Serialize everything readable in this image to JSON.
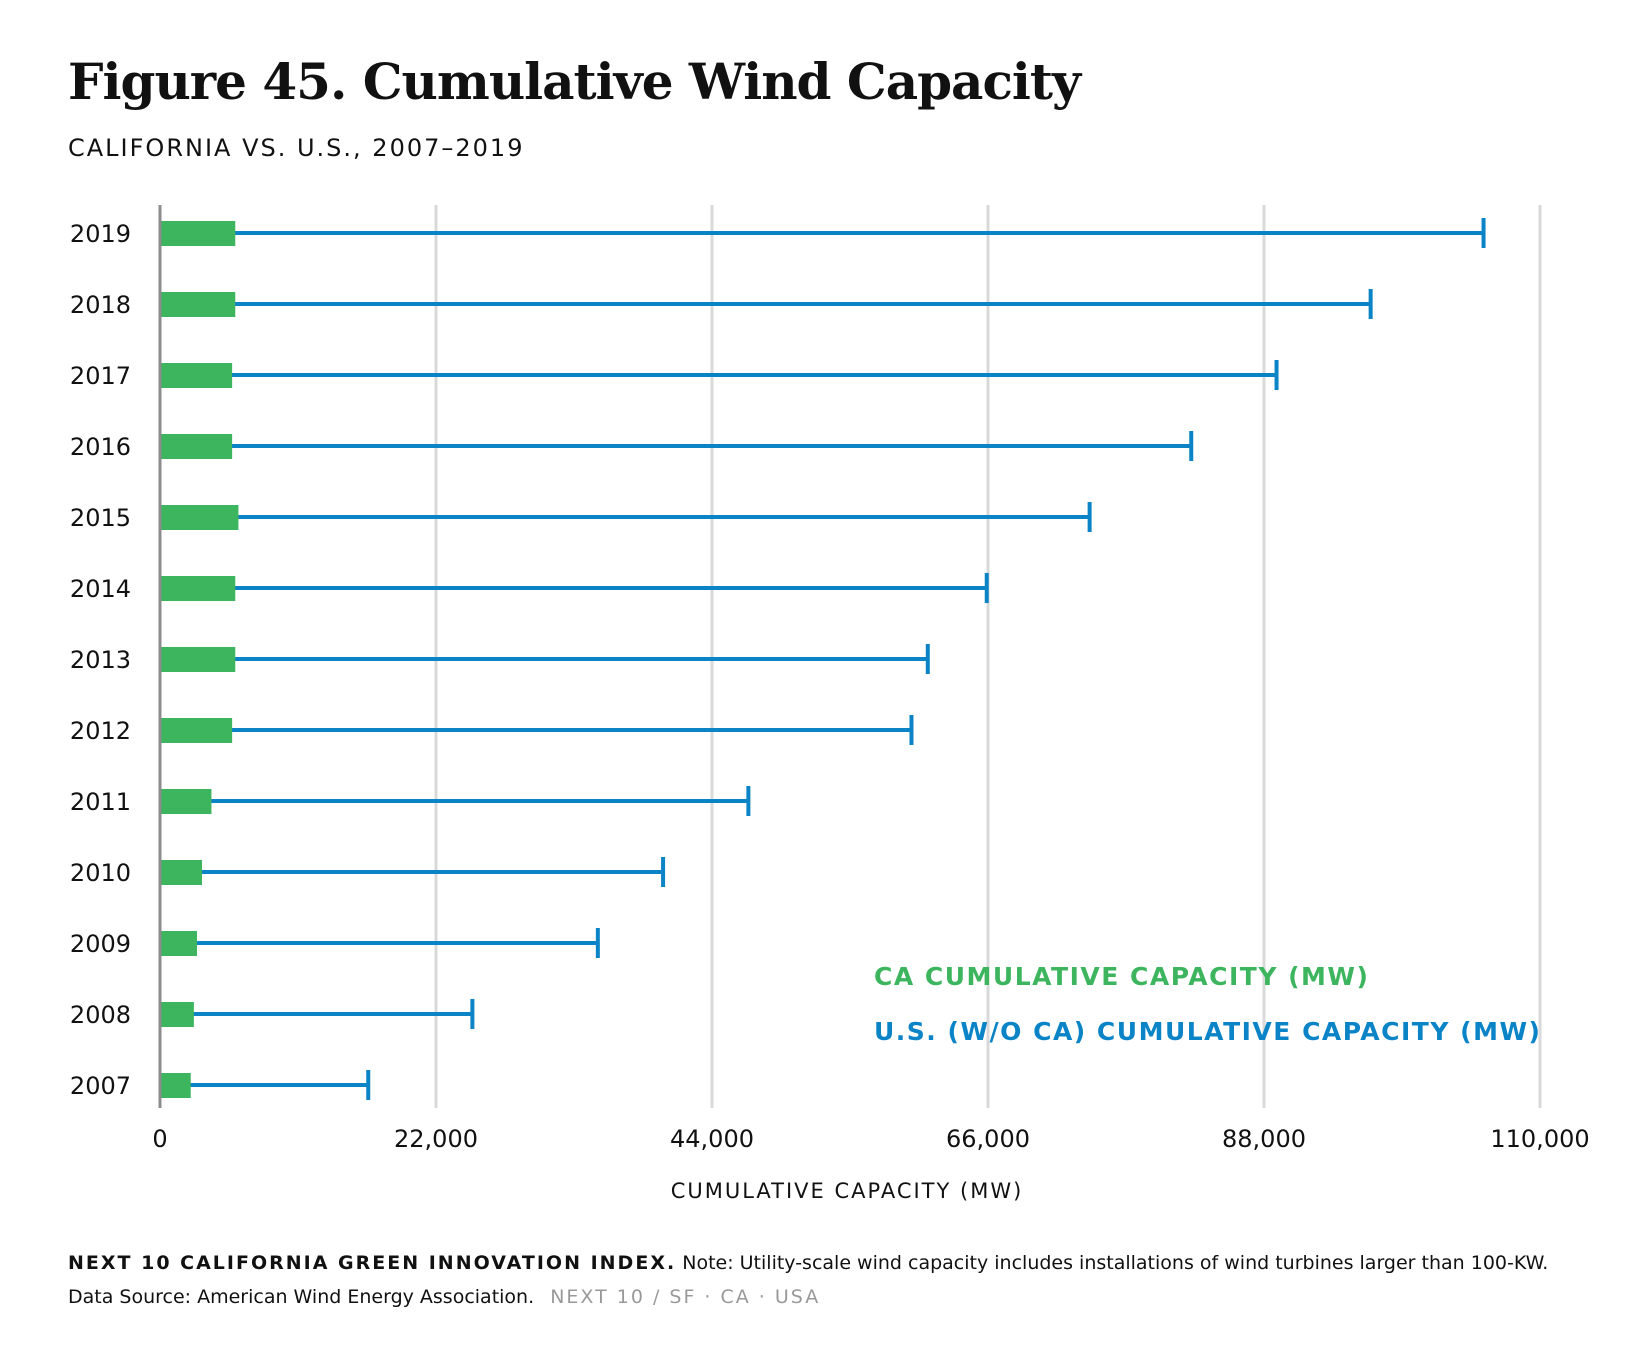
{
  "title": "Figure 45. Cumulative Wind Capacity",
  "subtitle": "CALIFORNIA VS. U.S., 2007–2019",
  "chart_data": {
    "type": "bar",
    "orientation": "horizontal",
    "categories": [
      "2019",
      "2018",
      "2017",
      "2016",
      "2015",
      "2014",
      "2013",
      "2012",
      "2011",
      "2010",
      "2009",
      "2008",
      "2007"
    ],
    "series": [
      {
        "name": "CA CUMULATIVE CAPACITY (MW)",
        "color": "#3cb55e",
        "values": [
          6000,
          6000,
          5750,
          5750,
          6250,
          6000,
          6000,
          5750,
          4100,
          3350,
          2950,
          2700,
          2450
        ]
      },
      {
        "name": "U.S. (W/O CA) CUMULATIVE CAPACITY (MW)",
        "color": "#0a84c6",
        "values": [
          105500,
          96500,
          89000,
          82200,
          74100,
          65900,
          61200,
          59900,
          46900,
          40100,
          34900,
          24900,
          16600
        ]
      }
    ],
    "xlabel": "CUMULATIVE CAPACITY (MW)",
    "xlim": [
      0,
      110000
    ],
    "xticks": [
      0,
      22000,
      44000,
      66000,
      88000,
      110000
    ],
    "xtick_labels": [
      "0",
      "22,000",
      "44,000",
      "66,000",
      "88,000",
      "110,000"
    ],
    "grid": "vertical",
    "legend": "bottom-right"
  },
  "footer": {
    "brand": "NEXT 10 CALIFORNIA GREEN INNOVATION INDEX.",
    "note": "Note: Utility-scale wind capacity includes installations of wind turbines larger than 100-KW.",
    "source": "Data Source: American Wind Energy Association.",
    "tag": "NEXT 10  /  SF · CA · USA"
  }
}
